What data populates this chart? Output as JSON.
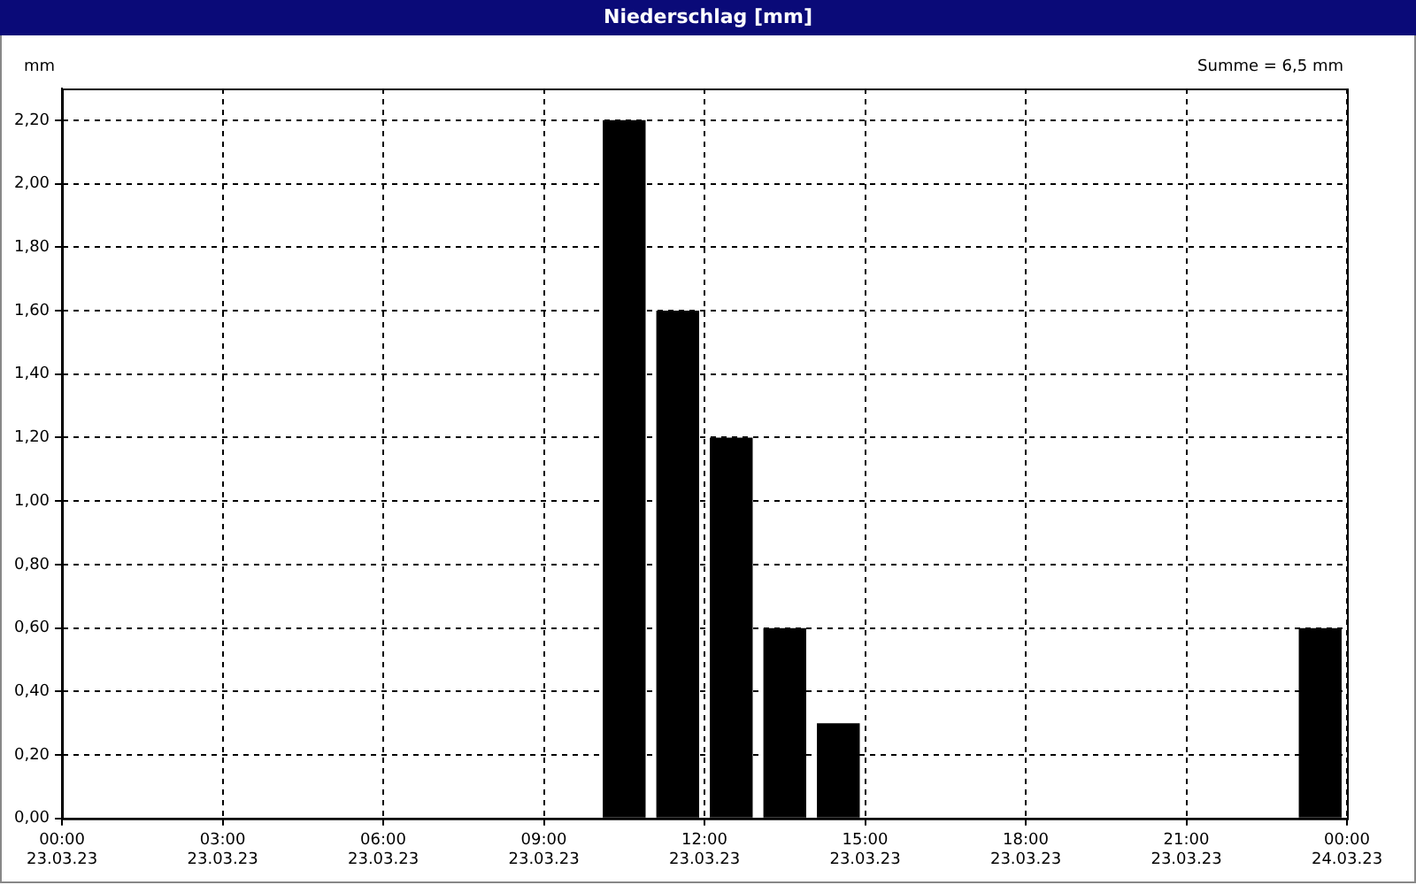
{
  "chart_data": {
    "type": "bar",
    "title": "Niederschlag [mm]",
    "ylabel": "mm",
    "annotations": [
      "Summe = 6,5 mm"
    ],
    "x": [
      "--03-23T10:30",
      "--03-23T11:30",
      "--03-23T12:30",
      "--03-23T13:30",
      "--03-23T14:30",
      "--03-23T23:30"
    ],
    "series": [
      {
        "color": "#000000",
        "values": [
          2.2,
          1.6,
          1.2,
          0.6,
          0.3,
          0.6
        ]
      }
    ],
    "xlim": [
      "--03-23T00:00",
      "--03-24T00:00"
    ],
    "xticks": [
      {
        "value": "--03-23T00:00",
        "label": "00:00\n23.03.23"
      },
      {
        "value": "--03-23T03:00",
        "label": "03:00\n23.03.23"
      },
      {
        "value": "--03-23T06:00",
        "label": "06:00\n23.03.23"
      },
      {
        "value": "--03-23T09:00",
        "label": "09:00\n23.03.23"
      },
      {
        "value": "--03-23T12:00",
        "label": "12:00\n23.03.23"
      },
      {
        "value": "--03-23T15:00",
        "label": "15:00\n23.03.23"
      },
      {
        "value": "--03-23T18:00",
        "label": "18:00\n23.03.23"
      },
      {
        "value": "--03-23T21:00",
        "label": "21:00\n23.03.23"
      },
      {
        "value": "--03-24T00:00",
        "label": "00:00\n24.03.23"
      }
    ],
    "ylim": [
      0,
      2.3
    ],
    "yticks": [
      {
        "value": 0,
        "label": "0,00"
      },
      {
        "value": 0.2,
        "label": "0,20"
      },
      {
        "value": 0.4,
        "label": "0,40"
      },
      {
        "value": 0.6,
        "label": "0,60"
      },
      {
        "value": 0.8,
        "label": "0,80"
      },
      {
        "value": 1,
        "label": "1,00"
      },
      {
        "value": 1.2,
        "label": "1,20"
      },
      {
        "value": 1.4,
        "label": "1,40"
      },
      {
        "value": 1.6,
        "label": "1,60"
      },
      {
        "value": 1.8,
        "label": "1,80"
      },
      {
        "value": 2,
        "label": "2,00"
      },
      {
        "value": 2.2,
        "label": "2,20"
      }
    ],
    "grid": true,
    "legend": false
  }
}
